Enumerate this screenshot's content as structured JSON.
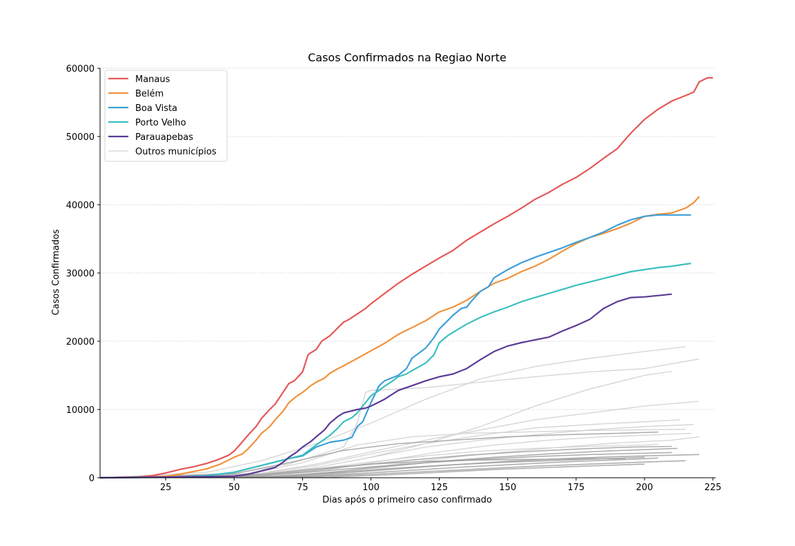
{
  "chart_data": {
    "type": "line",
    "title": "Casos Confirmados na Regiao Norte",
    "xlabel": "Dias após o primeiro caso confirmado",
    "ylabel": "Casos Confirmados",
    "xlim": [
      1,
      226
    ],
    "ylim": [
      0,
      60000
    ],
    "xticks": [
      25,
      50,
      75,
      100,
      125,
      150,
      175,
      200,
      225
    ],
    "yticks": [
      0,
      10000,
      20000,
      30000,
      40000,
      50000,
      60000
    ],
    "grid": "horizontal-dashed",
    "legend_position": "top-left",
    "highlight_series": [
      {
        "name": "Manaus",
        "color": "#e45756",
        "x": [
          1,
          15,
          20,
          25,
          30,
          35,
          40,
          43,
          45,
          48,
          50,
          52,
          55,
          58,
          60,
          63,
          65,
          67,
          70,
          72,
          75,
          77,
          78,
          80,
          82,
          85,
          88,
          90,
          92,
          95,
          98,
          100,
          105,
          110,
          115,
          120,
          125,
          130,
          135,
          140,
          145,
          150,
          155,
          160,
          165,
          170,
          175,
          180,
          185,
          190,
          195,
          200,
          205,
          210,
          215,
          218,
          220,
          223,
          225
        ],
        "y": [
          0,
          100,
          300,
          700,
          1200,
          1600,
          2100,
          2500,
          2800,
          3300,
          3900,
          4800,
          6200,
          7500,
          8700,
          10000,
          10800,
          12000,
          13800,
          14200,
          15500,
          18000,
          18300,
          18800,
          20000,
          20800,
          22000,
          22800,
          23200,
          24000,
          24800,
          25500,
          27000,
          28500,
          29800,
          31000,
          32200,
          33300,
          34800,
          36000,
          37200,
          38300,
          39500,
          40800,
          41800,
          43000,
          44000,
          45300,
          46800,
          48200,
          50500,
          52500,
          54000,
          55200,
          56000,
          56500,
          58000,
          58600,
          58600
        ]
      },
      {
        "name": "Belém",
        "color": "#f0923b",
        "x": [
          1,
          20,
          25,
          30,
          35,
          40,
          45,
          50,
          53,
          55,
          58,
          60,
          63,
          65,
          68,
          70,
          73,
          75,
          78,
          80,
          83,
          85,
          88,
          90,
          95,
          100,
          105,
          110,
          115,
          120,
          125,
          130,
          135,
          140,
          145,
          150,
          155,
          160,
          165,
          170,
          175,
          180,
          185,
          190,
          195,
          200,
          205,
          210,
          215,
          218,
          220
        ],
        "y": [
          0,
          100,
          200,
          500,
          900,
          1300,
          2000,
          3000,
          3500,
          4200,
          5500,
          6500,
          7500,
          8500,
          9800,
          11000,
          12000,
          12500,
          13500,
          14000,
          14600,
          15300,
          16000,
          16400,
          17500,
          18600,
          19700,
          21000,
          22000,
          23000,
          24300,
          25000,
          26000,
          27300,
          28500,
          29200,
          30200,
          31000,
          32000,
          33200,
          34300,
          35200,
          35800,
          36500,
          37300,
          38300,
          38600,
          38800,
          39500,
          40300,
          41200
        ]
      },
      {
        "name": "Boa Vista",
        "color": "#3c9fd8",
        "x": [
          1,
          30,
          40,
          50,
          55,
          60,
          65,
          70,
          75,
          80,
          85,
          90,
          93,
          95,
          97,
          100,
          103,
          105,
          110,
          113,
          115,
          120,
          123,
          125,
          128,
          130,
          133,
          135,
          137,
          140,
          143,
          145,
          150,
          155,
          160,
          165,
          170,
          175,
          180,
          185,
          190,
          195,
          200,
          205,
          210,
          217
        ],
        "y": [
          0,
          100,
          300,
          800,
          1300,
          1800,
          2300,
          2800,
          3200,
          4500,
          5200,
          5500,
          5900,
          7500,
          8200,
          11000,
          13500,
          14200,
          15000,
          16000,
          17500,
          19000,
          20500,
          21800,
          23000,
          23800,
          24800,
          25000,
          26000,
          27300,
          28000,
          29300,
          30500,
          31500,
          32300,
          33000,
          33700,
          34500,
          35200,
          36000,
          37000,
          37800,
          38300,
          38500,
          38500,
          38500
        ]
      },
      {
        "name": "Porto Velho",
        "color": "#3bbfbf",
        "x": [
          1,
          30,
          40,
          50,
          55,
          60,
          65,
          70,
          75,
          80,
          85,
          88,
          90,
          93,
          95,
          98,
          100,
          103,
          105,
          108,
          110,
          113,
          115,
          120,
          123,
          125,
          128,
          130,
          135,
          140,
          145,
          150,
          155,
          160,
          165,
          170,
          175,
          180,
          185,
          190,
          195,
          200,
          205,
          210,
          215,
          217
        ],
        "y": [
          0,
          100,
          300,
          800,
          1300,
          1800,
          2300,
          2800,
          3300,
          4800,
          6200,
          7300,
          8200,
          8800,
          9500,
          11000,
          12000,
          12800,
          13400,
          14200,
          14800,
          15200,
          15700,
          16800,
          18000,
          19800,
          20800,
          21300,
          22500,
          23500,
          24300,
          25000,
          25800,
          26400,
          27000,
          27600,
          28200,
          28700,
          29200,
          29700,
          30200,
          30500,
          30800,
          31000,
          31300,
          31400
        ]
      },
      {
        "name": "Parauapebas",
        "color": "#5b3a96",
        "x": [
          1,
          50,
          55,
          60,
          65,
          68,
          70,
          73,
          75,
          78,
          80,
          83,
          85,
          88,
          90,
          93,
          95,
          98,
          100,
          105,
          110,
          115,
          120,
          125,
          130,
          135,
          140,
          145,
          150,
          155,
          160,
          165,
          170,
          175,
          180,
          185,
          190,
          195,
          200,
          205,
          210
        ],
        "y": [
          0,
          200,
          500,
          1000,
          1500,
          2300,
          3000,
          3800,
          4500,
          5300,
          6000,
          7000,
          8000,
          9000,
          9500,
          9800,
          10000,
          10200,
          10500,
          11500,
          12800,
          13500,
          14200,
          14800,
          15200,
          16000,
          17300,
          18500,
          19300,
          19800,
          20200,
          20600,
          21500,
          22300,
          23200,
          24800,
          25800,
          26400,
          26500,
          26700,
          26900
        ]
      }
    ],
    "other_series": {
      "name": "Outros municípios",
      "color": "#d3d3d3",
      "lines": [
        {
          "x": [
            1,
            40,
            60,
            80,
            100,
            120,
            140,
            160,
            180,
            200,
            215
          ],
          "y": [
            0,
            800,
            2500,
            5000,
            8000,
            11500,
            14500,
            16300,
            17500,
            18500,
            19200
          ]
        },
        {
          "x": [
            1,
            50,
            70,
            90,
            95,
            98,
            100,
            120,
            140,
            160,
            180,
            200,
            220
          ],
          "y": [
            0,
            600,
            2000,
            4500,
            8000,
            12500,
            12800,
            13200,
            14000,
            14800,
            15500,
            16000,
            17400
          ]
        },
        {
          "x": [
            1,
            60,
            80,
            100,
            120,
            140,
            160,
            180,
            200,
            210
          ],
          "y": [
            0,
            500,
            1500,
            3000,
            5000,
            7500,
            10500,
            13000,
            15000,
            15600
          ]
        },
        {
          "x": [
            1,
            60,
            80,
            100,
            120,
            140,
            160,
            180,
            200,
            220
          ],
          "y": [
            0,
            700,
            2000,
            3800,
            5500,
            7000,
            8500,
            9500,
            10500,
            11200
          ]
        },
        {
          "x": [
            1,
            60,
            80,
            100,
            120,
            140,
            160,
            180,
            200,
            213
          ],
          "y": [
            0,
            600,
            1800,
            3500,
            5000,
            6200,
            7300,
            7800,
            8200,
            8500
          ]
        },
        {
          "x": [
            1,
            55,
            75,
            95,
            115,
            135,
            155,
            175,
            195,
            215
          ],
          "y": [
            0,
            500,
            2200,
            4800,
            6000,
            6500,
            6700,
            6900,
            7000,
            7100
          ]
        },
        {
          "x": [
            1,
            60,
            80,
            100,
            120,
            140,
            160,
            180,
            200,
            218
          ],
          "y": [
            0,
            400,
            1500,
            3000,
            4500,
            5500,
            6300,
            7000,
            7500,
            7800
          ]
        },
        {
          "x": [
            1,
            65,
            85,
            105,
            125,
            145,
            165,
            185,
            205,
            217
          ],
          "y": [
            0,
            300,
            1200,
            2500,
            3800,
            4800,
            5500,
            6000,
            6300,
            6500
          ]
        },
        {
          "x": [
            1,
            70,
            90,
            110,
            130,
            150,
            170,
            190,
            210,
            220
          ],
          "y": [
            0,
            300,
            1000,
            2000,
            3000,
            3800,
            4500,
            5100,
            5500,
            6000
          ]
        },
        {
          "x": [
            1,
            60,
            80,
            100,
            120,
            140,
            160,
            180,
            200,
            205
          ],
          "y": [
            0,
            400,
            1300,
            2300,
            3200,
            3900,
            4300,
            4600,
            4800,
            4900
          ]
        },
        {
          "x": [
            1,
            55,
            75,
            95,
            115,
            135,
            155,
            175,
            195,
            210
          ],
          "y": [
            0,
            300,
            900,
            1800,
            2600,
            3300,
            3800,
            4200,
            4500,
            4600
          ]
        },
        {
          "x": [
            1,
            65,
            85,
            105,
            125,
            145,
            165,
            185,
            205,
            212
          ],
          "y": [
            0,
            200,
            800,
            1600,
            2400,
            3000,
            3500,
            3900,
            4200,
            4300
          ]
        },
        {
          "x": [
            1,
            70,
            90,
            110,
            130,
            150,
            170,
            190,
            210,
            220
          ],
          "y": [
            0,
            200,
            700,
            1300,
            1900,
            2400,
            2800,
            3100,
            3300,
            3400
          ]
        },
        {
          "x": [
            1,
            75,
            95,
            115,
            135,
            155,
            175,
            195,
            205
          ],
          "y": [
            0,
            200,
            600,
            1100,
            1600,
            2000,
            2400,
            2700,
            2900
          ]
        },
        {
          "x": [
            1,
            60,
            80,
            100,
            120,
            140,
            160,
            180,
            200,
            210
          ],
          "y": [
            0,
            300,
            900,
            1600,
            2200,
            2700,
            3100,
            3400,
            3600,
            3700
          ]
        },
        {
          "x": [
            1,
            65,
            85,
            105,
            125,
            145,
            165,
            185,
            200
          ],
          "y": [
            0,
            200,
            700,
            1300,
            1800,
            2200,
            2500,
            2800,
            3000
          ]
        },
        {
          "x": [
            1,
            80,
            100,
            120,
            140,
            160,
            180,
            200,
            215
          ],
          "y": [
            0,
            200,
            500,
            900,
            1300,
            1700,
            2000,
            2300,
            2500
          ]
        },
        {
          "x": [
            1,
            85,
            105,
            125,
            145,
            165,
            185,
            200
          ],
          "y": [
            0,
            100,
            400,
            800,
            1200,
            1500,
            1800,
            2000
          ]
        },
        {
          "x": [
            1,
            60,
            80,
            100,
            120,
            140,
            160,
            180,
            193
          ],
          "y": [
            0,
            500,
            1300,
            2000,
            2400,
            2600,
            2700,
            2800,
            2800
          ]
        },
        {
          "x": [
            1,
            50,
            70,
            90,
            110,
            130,
            150,
            170,
            190,
            205
          ],
          "y": [
            0,
            600,
            2200,
            4000,
            5000,
            5500,
            6000,
            6300,
            6500,
            6700
          ]
        }
      ]
    }
  }
}
